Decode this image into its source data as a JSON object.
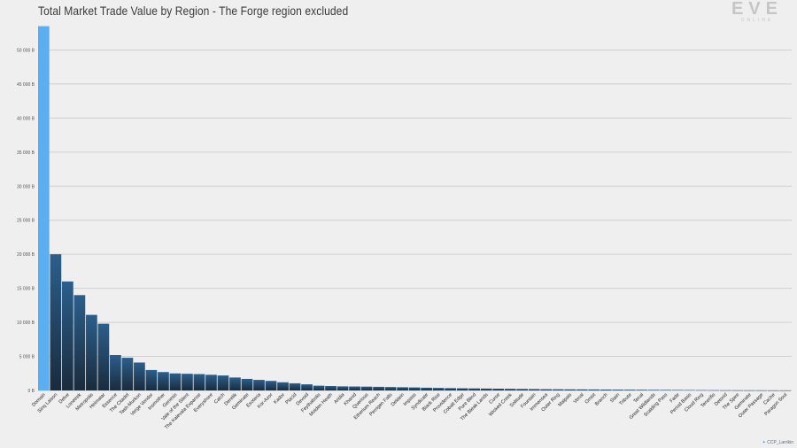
{
  "header": {
    "title": "Total Market Trade Value by Region - The Forge region excluded"
  },
  "logo": {
    "mark": "EVE",
    "sub": "ONLINE",
    "icon": "eve-online-logo"
  },
  "credit": {
    "icon": "twitter-bird-icon",
    "text": "CCP_Larrikin"
  },
  "colors": {
    "highlight": "#5aaff2",
    "bar_top": "#2b5f8c",
    "bar_bottom": "#1a2b3c",
    "grid": "#cfcfcf"
  },
  "chart_data": {
    "type": "bar",
    "title": "Total Market Trade Value by Region - The Forge region excluded",
    "xlabel": "",
    "ylabel": "",
    "ylim": [
      0,
      55000
    ],
    "yticks": [
      0,
      5000,
      10000,
      15000,
      20000,
      25000,
      30000,
      35000,
      40000,
      45000,
      50000
    ],
    "ytick_labels": [
      "0 B",
      "5 000 B",
      "10 000 B",
      "15 000 B",
      "20 000 B",
      "25 000 B",
      "30 000 B",
      "35 000 B",
      "40 000 B",
      "45 000 B",
      "50 000 B"
    ],
    "grid": true,
    "highlight_index": 0,
    "categories": [
      "Domain",
      "Sinq Laison",
      "Delve",
      "Lonetrek",
      "Metropolis",
      "Heimatar",
      "Essence",
      "The Citadel",
      "Tash-Murkon",
      "Verge Vendor",
      "Insmother",
      "Genesis",
      "Vale of the Silent",
      "The Kalevala Expanse",
      "Everyshore",
      "Catch",
      "Derelik",
      "Geminate",
      "Esoteria",
      "Kor-Azor",
      "Kador",
      "Placid",
      "Devoid",
      "Feythabolis",
      "Molden Heath",
      "Aridia",
      "Khanid",
      "Querious",
      "Etherium Reach",
      "Perrigen Falls",
      "Deklein",
      "Impass",
      "Syndicate",
      "Black Rise",
      "Providence",
      "Cobalt Edge",
      "Pure Blind",
      "The Bleak Lands",
      "Curse",
      "Wicked Creek",
      "Solitude",
      "Fountain",
      "Immensea",
      "Outer Ring",
      "Malpais",
      "Venal",
      "Omist",
      "Branch",
      "Stain",
      "Tribute",
      "Tenal",
      "Great Wildlands",
      "Scalding Pass",
      "Fade",
      "Period Basis",
      "Cloud Ring",
      "Tenerifis",
      "Detorid",
      "The Spire",
      "Geminate",
      "Outer Passage",
      "Cache",
      "Paragon Soul"
    ],
    "values": [
      53500,
      20000,
      16000,
      14000,
      11100,
      9800,
      5200,
      4800,
      4100,
      3000,
      2700,
      2500,
      2450,
      2400,
      2300,
      2200,
      1900,
      1700,
      1550,
      1400,
      1200,
      1050,
      900,
      700,
      650,
      600,
      580,
      560,
      530,
      500,
      470,
      440,
      400,
      370,
      340,
      320,
      300,
      280,
      260,
      240,
      220,
      200,
      180,
      170,
      160,
      150,
      140,
      130,
      120,
      110,
      100,
      90,
      80,
      70,
      60,
      50,
      40,
      30,
      25,
      20,
      15,
      10,
      5
    ]
  }
}
